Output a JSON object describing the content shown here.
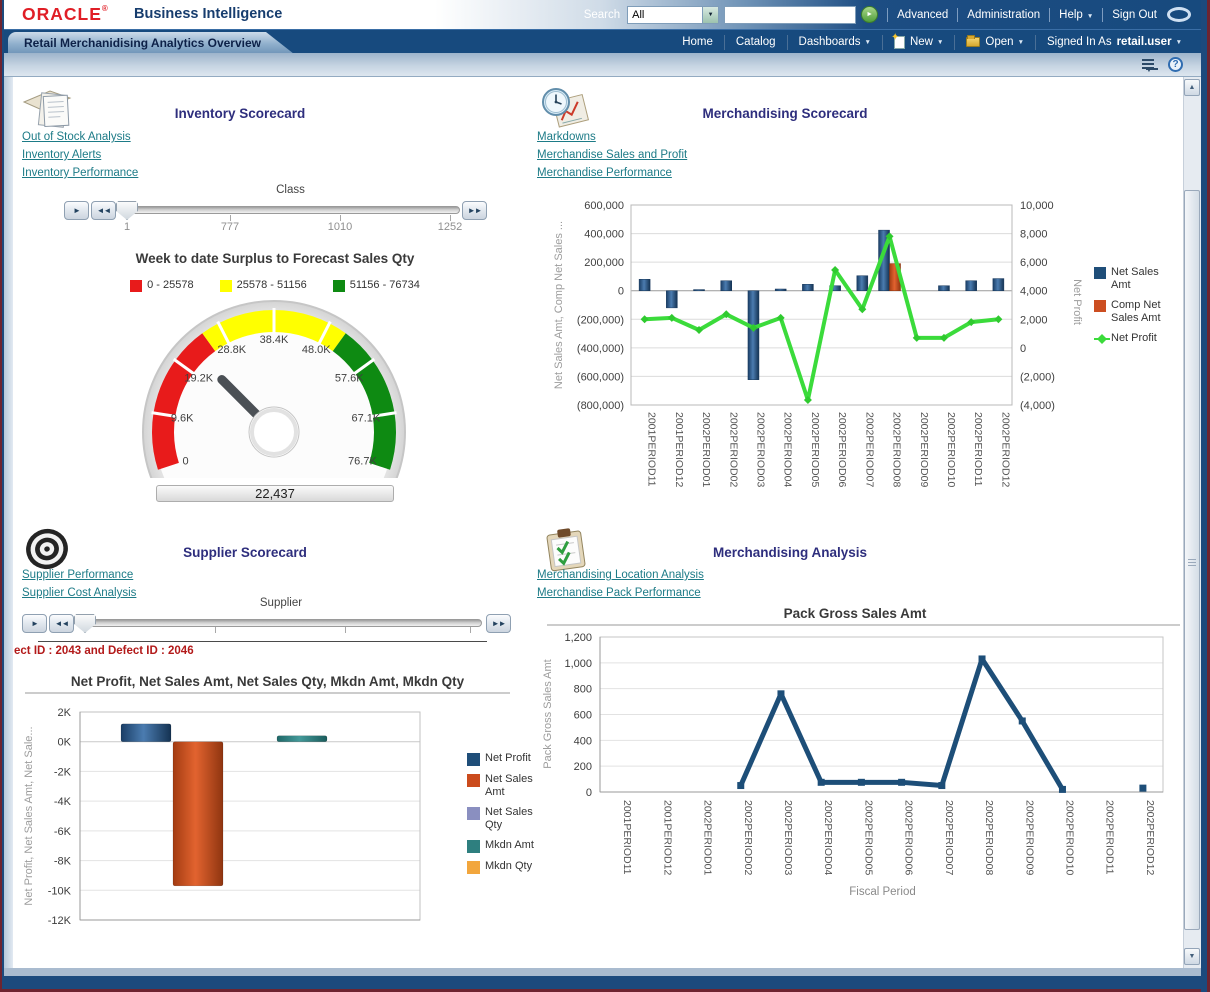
{
  "header": {
    "logo": "ORACLE",
    "logo_mark": "®",
    "product_name": "Business Intelligence",
    "search": {
      "label": "Search",
      "scope": "All",
      "query": "",
      "go": "►"
    },
    "top_links": {
      "advanced": "Advanced",
      "administration": "Administration",
      "help": "Help",
      "sign_out": "Sign Out"
    },
    "tab_title": "Retail Merchanidising Analytics Overview",
    "nav": {
      "home": "Home",
      "catalog": "Catalog",
      "dashboards": "Dashboards",
      "new": "New",
      "open": "Open",
      "signed_in_as": "Signed In As",
      "user": "retail.user"
    }
  },
  "sections": {
    "inventory_scorecard": {
      "title": "Inventory Scorecard",
      "links": [
        "Out of Stock Analysis",
        "Inventory Alerts",
        "Inventory Performance"
      ],
      "slider": {
        "label": "Class",
        "thumb_value": "1",
        "ticks": [
          "777",
          "1010",
          "1252"
        ]
      }
    },
    "merchandising_scorecard": {
      "title": "Merchandising Scorecard",
      "links": [
        "Markdowns",
        "Merchandise Sales and Profit",
        "Merchandise Performance"
      ]
    },
    "supplier_scorecard": {
      "title": "Supplier Scorecard",
      "links": [
        "Supplier Performance",
        "Supplier Cost Analysis"
      ],
      "slider": {
        "label": "Supplier"
      },
      "note": "ect ID : 2043 and Defect ID : 2046"
    },
    "merchandising_analysis": {
      "title": "Merchandising Analysis",
      "links": [
        "Merchandising Location Analysis",
        "Merchandise Pack Performance"
      ]
    }
  },
  "chart_data": [
    {
      "id": "surplus_gauge",
      "type": "gauge",
      "title": "Week to date Surplus to Forecast Sales Qty",
      "min": 0,
      "max": 76734,
      "value": 22437,
      "value_label": "22,437",
      "segments": [
        {
          "from": 0,
          "to": 25578,
          "color": "#e81b1b",
          "label": "0 - 25578"
        },
        {
          "from": 25578,
          "to": 51156,
          "color": "#ffff00",
          "label": "25578 - 51156"
        },
        {
          "from": 51156,
          "to": 76734,
          "color": "#0e8a12",
          "label": "51156 - 76734"
        }
      ],
      "tick_values": [
        0,
        9592,
        19184,
        28775,
        38367,
        47959,
        57551,
        67142,
        76734
      ],
      "tick_labels": [
        "0",
        "9.6K",
        "19.2K",
        "28.8K",
        "38.4K",
        "48.0K",
        "57.6K",
        "67.1K",
        "76.7K"
      ]
    },
    {
      "id": "merch_scorecard_combo",
      "type": "bar+line",
      "categories": [
        "2001PERIOD11",
        "2001PERIOD12",
        "2002PERIOD01",
        "2002PERIOD02",
        "2002PERIOD03",
        "2002PERIOD04",
        "2002PERIOD05",
        "2002PERIOD06",
        "2002PERIOD07",
        "2002PERIOD08",
        "2002PERIOD09",
        "2002PERIOD10",
        "2002PERIOD11",
        "2002PERIOD12"
      ],
      "left_axis": {
        "label": "Net Sales Amt, Comp Net Sales ...",
        "min": -800000,
        "max": 600000,
        "tick_values": [
          600000,
          400000,
          200000,
          0,
          -200000,
          -400000,
          -600000,
          -800000
        ],
        "tick_labels": [
          "600,000",
          "400,000",
          "200,000",
          "0",
          "(200,000)",
          "(400,000)",
          "(600,000)",
          "(800,000)"
        ]
      },
      "right_axis": {
        "label": "Net Profit",
        "min": -4000,
        "max": 10000,
        "tick_values": [
          10000,
          8000,
          6000,
          4000,
          2000,
          0,
          -2000,
          -4000
        ],
        "tick_labels": [
          "10,000",
          "8,000",
          "6,000",
          "4,000",
          "2,000",
          "0",
          "(2,000)",
          "(4,000)"
        ]
      },
      "series": [
        {
          "name": "Net Sales Amt",
          "type": "bar",
          "axis": "left",
          "color": "#1f4e79",
          "values": [
            80000,
            -120000,
            8000,
            70000,
            -623000,
            12000,
            45000,
            35000,
            105000,
            424000,
            null,
            35000,
            70000,
            85000
          ]
        },
        {
          "name": "Comp Net Sales Amt",
          "type": "bar",
          "axis": "left",
          "color": "#cc4e21",
          "values": [
            null,
            null,
            null,
            null,
            null,
            null,
            null,
            null,
            null,
            190000,
            null,
            null,
            null,
            null
          ]
        },
        {
          "name": "Net Profit",
          "type": "line",
          "axis": "right",
          "color": "#3bdb3b",
          "values": [
            2000,
            2100,
            1250,
            2350,
            1400,
            2100,
            -3650,
            5450,
            2700,
            7800,
            700,
            700,
            1800,
            2000
          ]
        }
      ]
    },
    {
      "id": "supplier_bars",
      "type": "bar",
      "title": "Net Profit, Net Sales Amt, Net Sales Qty, Mkdn Amt, Mkdn Qty",
      "ylabel": "Net Profit, Net Sales Amt, Net Sale...",
      "ymin": -12000,
      "ymax": 2000,
      "tick_values": [
        2000,
        0,
        -2000,
        -4000,
        -6000,
        -8000,
        -10000,
        -12000
      ],
      "tick_labels": [
        "2K",
        "0K",
        "-2K",
        "-4K",
        "-6K",
        "-8K",
        "-10K",
        "-12K"
      ],
      "series": [
        {
          "name": "Net Profit",
          "color": "#1f4e79",
          "value": 1200
        },
        {
          "name": "Net Sales Amt",
          "color": "#cb4b1d",
          "value": -9700
        },
        {
          "name": "Net Sales Qty",
          "color": "#8a8fc0",
          "value": 0
        },
        {
          "name": "Mkdn Amt",
          "color": "#2e7f7f",
          "value": 400
        },
        {
          "name": "Mkdn Qty",
          "color": "#f2a63d",
          "value": 0
        }
      ]
    },
    {
      "id": "pack_gross_sales",
      "type": "line",
      "title": "Pack Gross Sales Amt",
      "ylabel": "Pack Gross Sales Amt",
      "xlabel": "Fiscal Period",
      "color": "#1d4e78",
      "ymin": 0,
      "ymax": 1200,
      "tick_values": [
        1200,
        1000,
        800,
        600,
        400,
        200,
        0
      ],
      "tick_labels": [
        "1,200",
        "1,000",
        "800",
        "600",
        "400",
        "200",
        "0"
      ],
      "categories": [
        "2001PERIOD11",
        "2001PERIOD12",
        "2002PERIOD01",
        "2002PERIOD02",
        "2002PERIOD03",
        "2002PERIOD04",
        "2002PERIOD05",
        "2002PERIOD06",
        "2002PERIOD07",
        "2002PERIOD08",
        "2002PERIOD09",
        "2002PERIOD10",
        "2002PERIOD11",
        "2002PERIOD12"
      ],
      "values": [
        null,
        null,
        null,
        50,
        760,
        75,
        75,
        75,
        50,
        1030,
        550,
        20,
        null,
        30
      ]
    }
  ]
}
